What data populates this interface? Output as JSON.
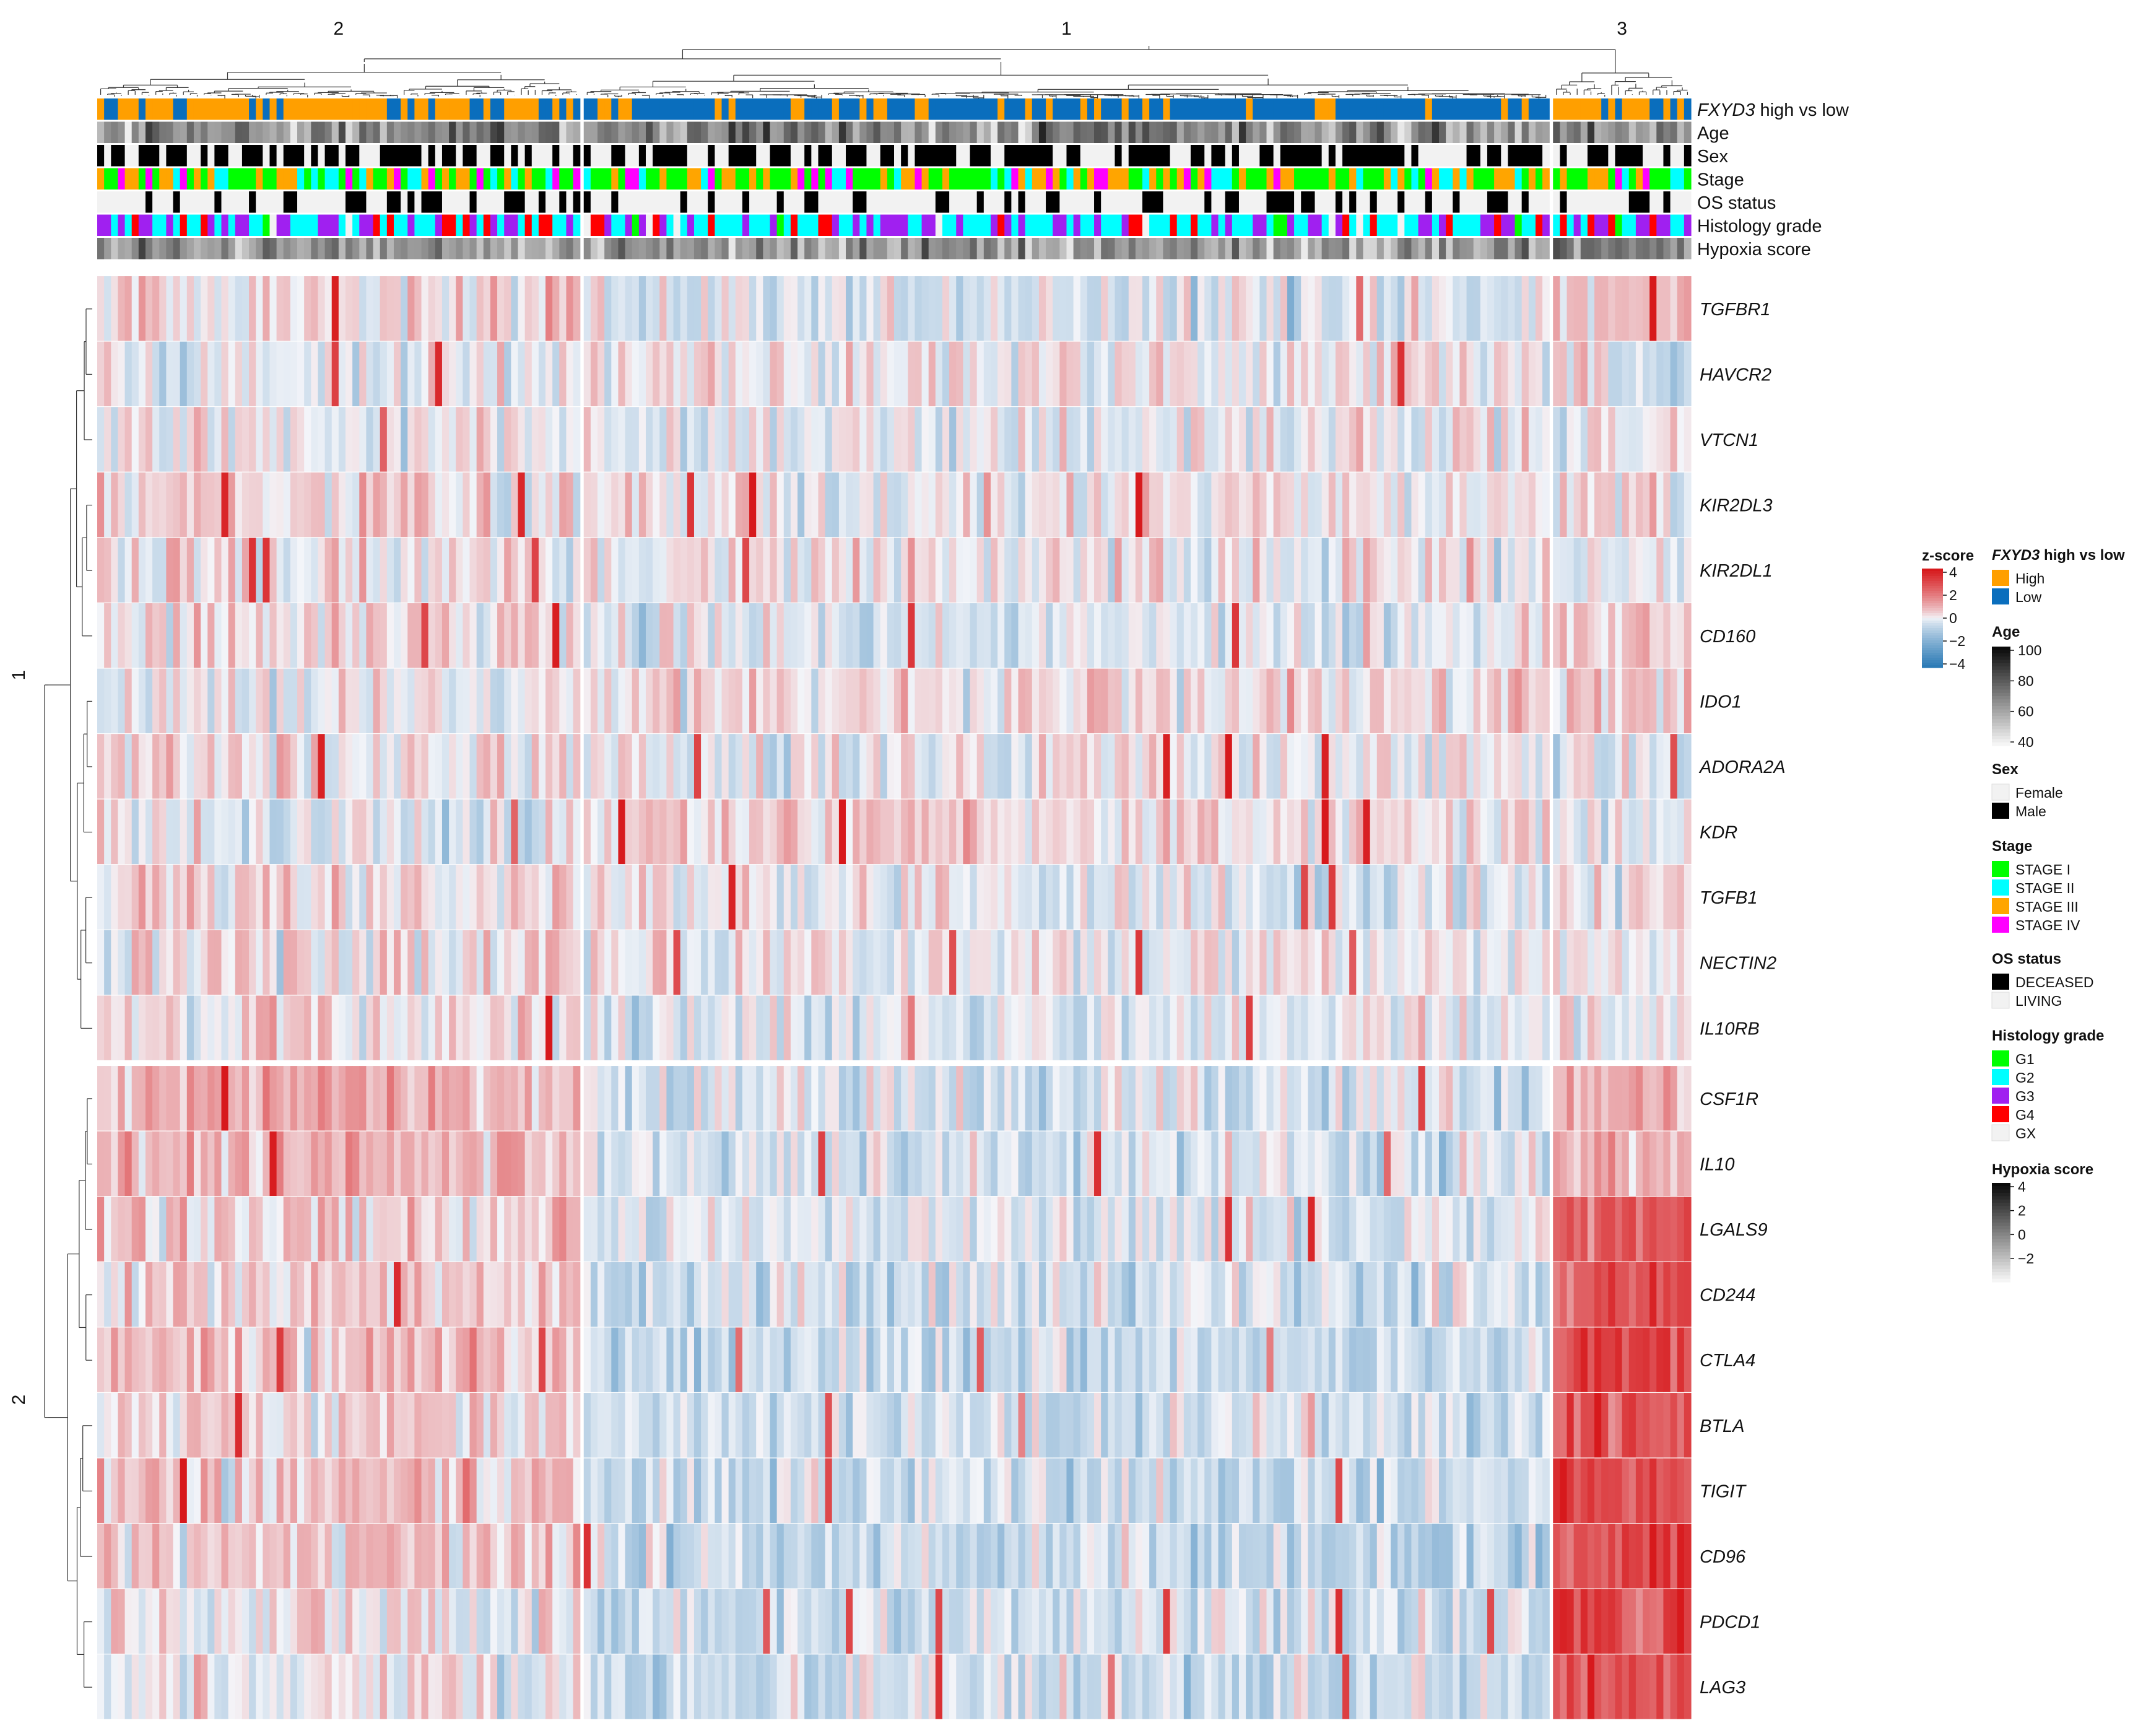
{
  "chart_data": {
    "type": "heatmap",
    "title": "",
    "column_clusters": [
      {
        "label": "2",
        "n_samples": 70
      },
      {
        "label": "1",
        "n_samples": 140
      },
      {
        "label": "3",
        "n_samples": 20
      }
    ],
    "row_clusters": [
      {
        "label": "1",
        "genes": [
          "TGFBR1",
          "HAVCR2",
          "VTCN1",
          "KIR2DL3",
          "KIR2DL1",
          "CD160",
          "IDO1",
          "ADORA2A",
          "KDR",
          "TGFB1",
          "NECTIN2",
          "IL10RB"
        ]
      },
      {
        "label": "2",
        "genes": [
          "CSF1R",
          "IL10",
          "LGALS9",
          "CD244",
          "CTLA4",
          "BTLA",
          "TIGIT",
          "CD96",
          "PDCD1",
          "LAG3"
        ]
      }
    ],
    "genes": [
      "TGFBR1",
      "HAVCR2",
      "VTCN1",
      "KIR2DL3",
      "KIR2DL1",
      "CD160",
      "IDO1",
      "ADORA2A",
      "KDR",
      "TGFB1",
      "NECTIN2",
      "IL10RB",
      "CSF1R",
      "IL10",
      "LGALS9",
      "CD244",
      "CTLA4",
      "BTLA",
      "TIGIT",
      "CD96",
      "PDCD1",
      "LAG3"
    ],
    "gene_cluster_mean_zscore": [
      [
        0.3,
        -0.3,
        0.8
      ],
      [
        -0.1,
        0.1,
        -0.2
      ],
      [
        0.0,
        0.0,
        0.0
      ],
      [
        0.4,
        0.0,
        0.2
      ],
      [
        0.1,
        0.1,
        0.0
      ],
      [
        0.3,
        -0.2,
        0.5
      ],
      [
        0.0,
        0.3,
        0.4
      ],
      [
        0.2,
        0.0,
        -0.3
      ],
      [
        -0.2,
        0.4,
        -0.3
      ],
      [
        0.4,
        -0.1,
        0.2
      ],
      [
        0.2,
        0.0,
        0.1
      ],
      [
        0.3,
        -0.2,
        -0.1
      ],
      [
        0.9,
        -0.3,
        1.0
      ],
      [
        0.8,
        -0.4,
        0.9
      ],
      [
        0.6,
        -0.3,
        2.5
      ],
      [
        0.5,
        -0.5,
        2.8
      ],
      [
        0.6,
        -0.6,
        3.0
      ],
      [
        0.5,
        -0.5,
        2.6
      ],
      [
        0.6,
        -0.6,
        2.9
      ],
      [
        0.6,
        -0.6,
        2.9
      ],
      [
        0.0,
        -0.5,
        2.7
      ],
      [
        0.0,
        -0.5,
        2.7
      ]
    ],
    "annotation_tracks": [
      "FXYD3 high vs low",
      "Age",
      "Sex",
      "Stage",
      "OS status",
      "Histology grade",
      "Hypoxia score"
    ],
    "annotation_first_track_italic": "FXYD3",
    "annotation_first_track_rest": " high vs low",
    "zscore_range": [
      -4,
      4
    ],
    "zscore_ticks": [
      "4",
      "2",
      "0",
      "−2",
      "−4"
    ],
    "colors": {
      "heat_high": "#d7191c",
      "heat_mid": "#f4f5f9",
      "heat_low": "#2c7bb6",
      "fxyd3_high": "#ff9f00",
      "fxyd3_low": "#0a6ebd",
      "male": "#000000",
      "female": "#f2f2f2",
      "deceased": "#000000",
      "living": "#f2f2f2",
      "stage_I": "#00ff00",
      "stage_II": "#00ffff",
      "stage_III": "#ffa500",
      "stage_IV": "#ff00ff",
      "grade_G1": "#00ff00",
      "grade_G2": "#00ffff",
      "grade_G3": "#a020f0",
      "grade_G4": "#ff0000",
      "grade_GX": "#f2f2f2"
    },
    "legends": {
      "zscore": {
        "title": "z-score"
      },
      "fxyd3": {
        "title_italic": "FXYD3",
        "title_rest": " high vs low",
        "items": [
          "High",
          "Low"
        ]
      },
      "age": {
        "title": "Age",
        "ticks": [
          "100",
          "80",
          "60",
          "40"
        ]
      },
      "sex": {
        "title": "Sex",
        "items": [
          "Female",
          "Male"
        ]
      },
      "stage": {
        "title": "Stage",
        "items": [
          "STAGE I",
          "STAGE II",
          "STAGE III",
          "STAGE IV"
        ]
      },
      "os": {
        "title": "OS status",
        "items": [
          "DECEASED",
          "LIVING"
        ]
      },
      "grade": {
        "title": "Histology grade",
        "items": [
          "G1",
          "G2",
          "G3",
          "G4",
          "GX"
        ]
      },
      "hypoxia": {
        "title": "Hypoxia score",
        "ticks": [
          "4",
          "2",
          "0",
          "−2"
        ]
      }
    }
  }
}
